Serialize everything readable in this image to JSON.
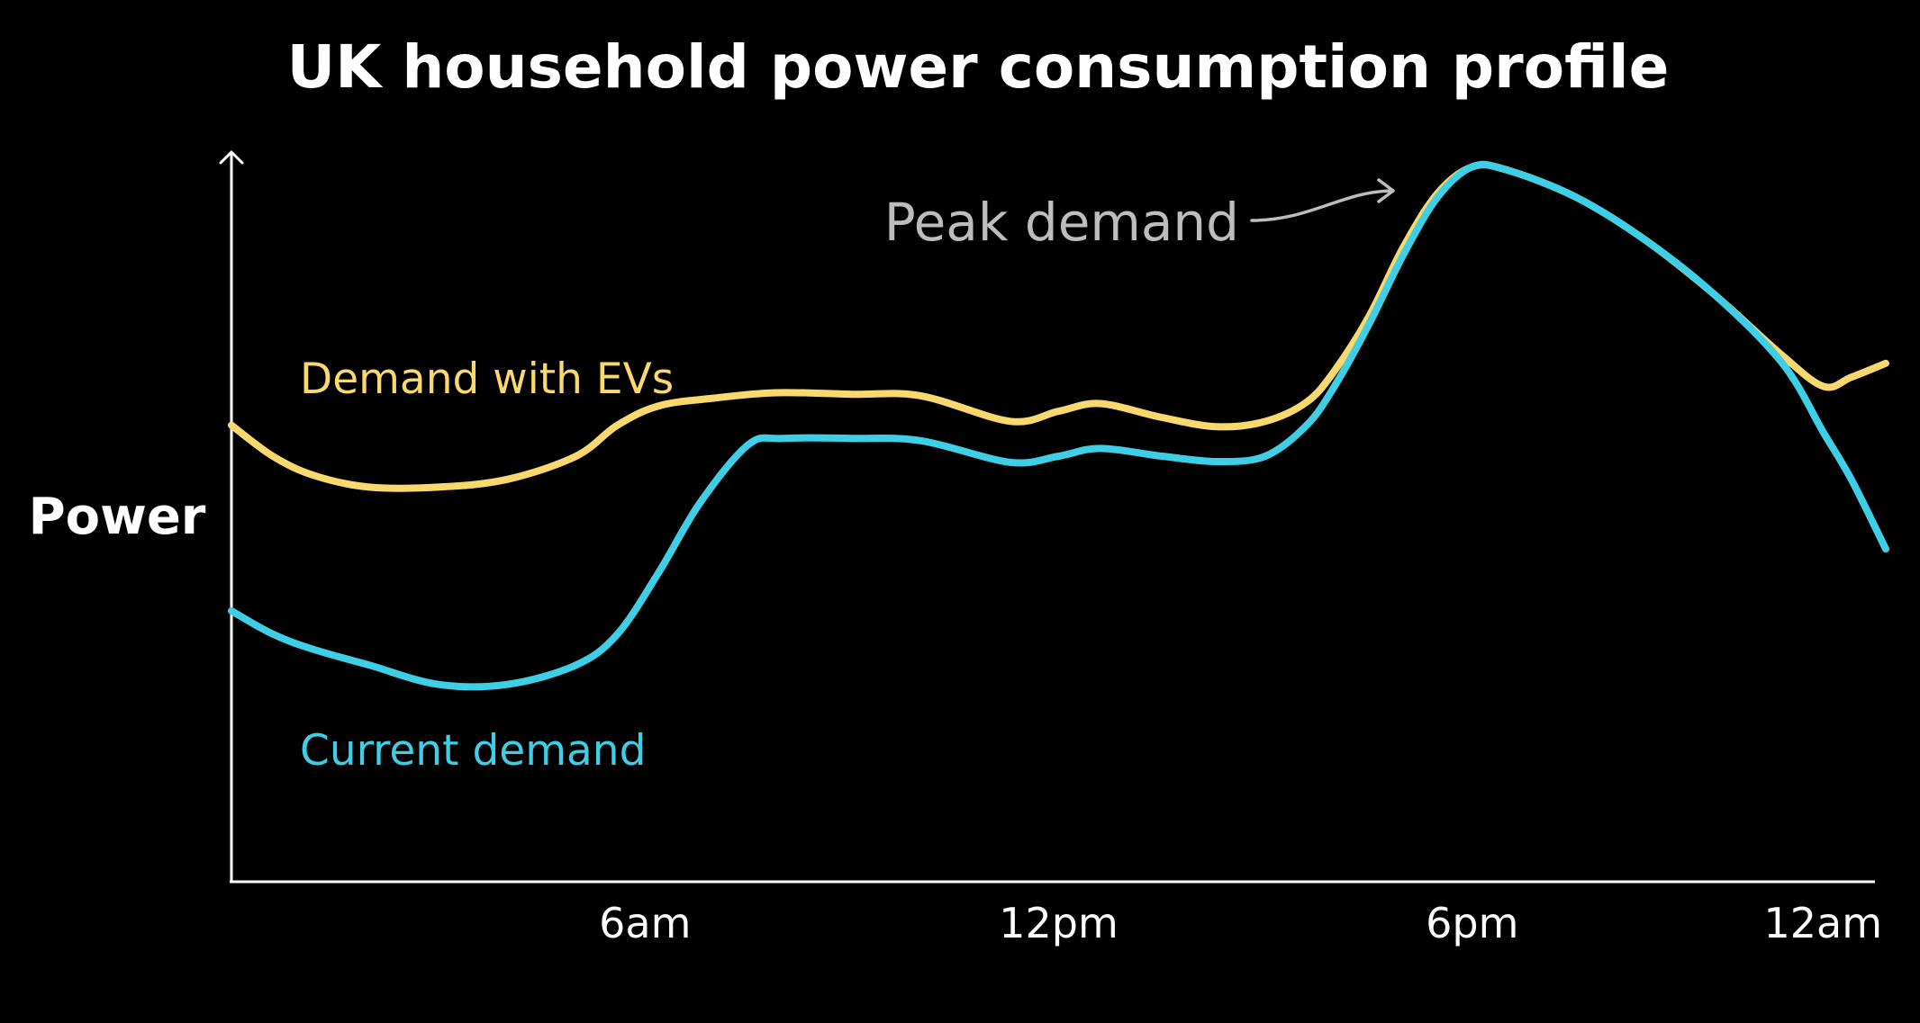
{
  "chart_data": {
    "type": "line",
    "title": "UK household power consumption profile",
    "xlabel": "",
    "ylabel": "Power",
    "x_ticks": [
      {
        "hour": 6,
        "label": "6am"
      },
      {
        "hour": 12,
        "label": "12pm"
      },
      {
        "hour": 18,
        "label": "6pm"
      },
      {
        "hour": 24,
        "label": "12am"
      }
    ],
    "xlim": [
      0,
      24
    ],
    "ylim": [
      0,
      100
    ],
    "y_tick_labels": false,
    "grid": false,
    "legend": "inline labels",
    "series": [
      {
        "name": "Demand with EVs",
        "color": "#f9d86e",
        "points": [
          [
            0.0,
            59
          ],
          [
            0.6,
            55
          ],
          [
            1.2,
            52.5
          ],
          [
            2.0,
            51
          ],
          [
            3.0,
            51
          ],
          [
            4.0,
            52
          ],
          [
            5.0,
            55
          ],
          [
            5.6,
            59
          ],
          [
            6.2,
            61.5
          ],
          [
            7.0,
            62.5
          ],
          [
            7.9,
            63.2
          ],
          [
            9.0,
            63
          ],
          [
            10.0,
            62.8
          ],
          [
            11.3,
            59.5
          ],
          [
            12.0,
            60.8
          ],
          [
            12.6,
            61.8
          ],
          [
            13.5,
            60
          ],
          [
            14.3,
            58.8
          ],
          [
            15.0,
            59.5
          ],
          [
            15.6,
            62
          ],
          [
            16.0,
            66
          ],
          [
            16.5,
            73
          ],
          [
            17.0,
            82
          ],
          [
            17.5,
            89
          ],
          [
            18.0,
            92.4
          ],
          [
            18.5,
            92
          ],
          [
            19.5,
            88.5
          ],
          [
            20.5,
            83
          ],
          [
            21.5,
            76
          ],
          [
            22.5,
            68
          ],
          [
            23.1,
            64
          ],
          [
            23.5,
            65.2
          ],
          [
            24.0,
            67
          ]
        ]
      },
      {
        "name": "Current demand",
        "color": "#3ecfe7",
        "points": [
          [
            0.0,
            35
          ],
          [
            0.6,
            32
          ],
          [
            1.2,
            30
          ],
          [
            2.0,
            28
          ],
          [
            3.0,
            25.5
          ],
          [
            4.0,
            25.5
          ],
          [
            5.0,
            28
          ],
          [
            5.6,
            32
          ],
          [
            6.2,
            40
          ],
          [
            6.8,
            49
          ],
          [
            7.5,
            56.5
          ],
          [
            8.0,
            57.3
          ],
          [
            9.0,
            57.3
          ],
          [
            10.0,
            57
          ],
          [
            11.3,
            54.2
          ],
          [
            12.0,
            55
          ],
          [
            12.6,
            56
          ],
          [
            13.5,
            55
          ],
          [
            14.3,
            54.3
          ],
          [
            15.0,
            55
          ],
          [
            15.6,
            59
          ],
          [
            16.0,
            64
          ],
          [
            16.5,
            72
          ],
          [
            17.0,
            81
          ],
          [
            17.5,
            88.5
          ],
          [
            18.0,
            92.4
          ],
          [
            18.5,
            92
          ],
          [
            19.5,
            88.5
          ],
          [
            20.5,
            83
          ],
          [
            21.5,
            76
          ],
          [
            22.5,
            67
          ],
          [
            23.1,
            58
          ],
          [
            23.5,
            52
          ],
          [
            24.0,
            43
          ]
        ]
      }
    ],
    "annotations": [
      {
        "text": "Peak demand",
        "points_to": {
          "hour": 17.8,
          "value": 93.2
        }
      }
    ]
  }
}
